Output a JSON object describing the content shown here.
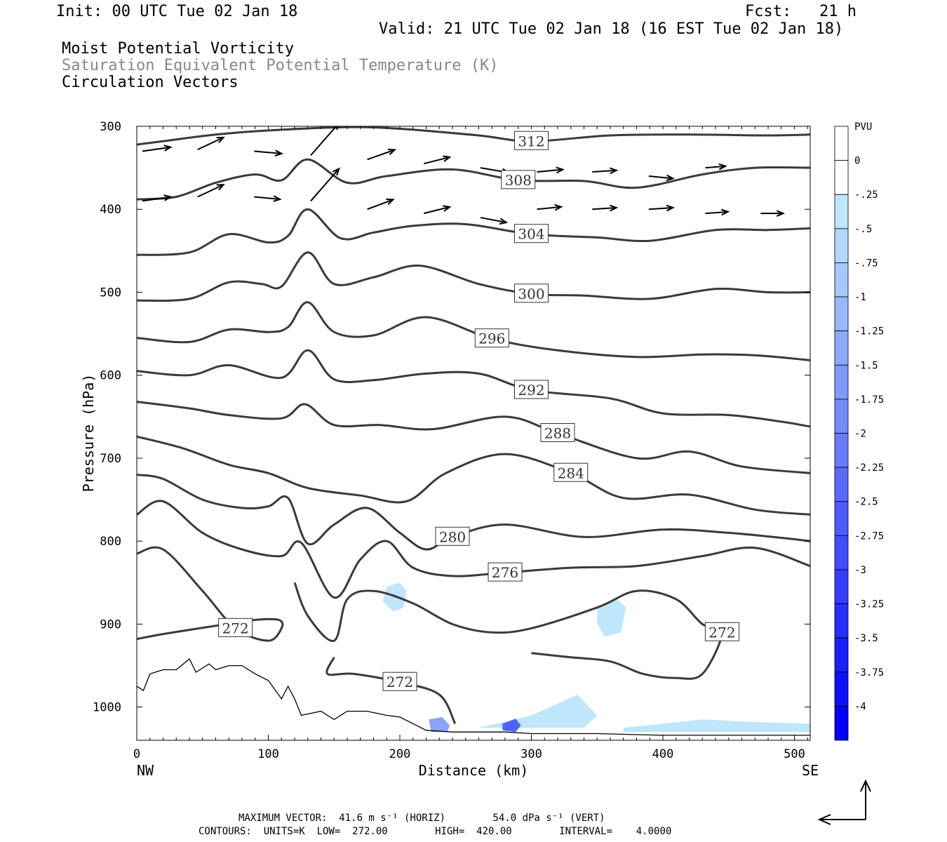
{
  "header": {
    "init": "Init: 00 UTC Tue 02 Jan 18",
    "fcst": "Fcst:   21 h",
    "valid": "Valid: 21 UTC Tue 02 Jan 18 (16 EST Tue 02 Jan 18)",
    "line1": "Moist Potential Vorticity",
    "line2": "Saturation Equivalent Potential Temperature (K)",
    "line3": "Circulation Vectors"
  },
  "footer": {
    "max_vector": "MAXIMUM VECTOR:  41.6 m s⁻¹ (HORIZ)        54.0 dPa s⁻¹ (VERT)",
    "contours": "CONTOURS:  UNITS=K  LOW=  272.00        HIGH=  420.00        INTERVAL=    4.0000"
  },
  "colors": {
    "contour": "#3a3a3a",
    "pv_light": "#bfe6fb",
    "pv_dark": "#0000ff",
    "arrow": "#000000"
  },
  "chart_data": {
    "type": "line",
    "xlabel": "Distance (km)",
    "ylabel": "Pressure (hPa)",
    "xlim": [
      0,
      512
    ],
    "ylim": [
      1040,
      300
    ],
    "x_ticks": [
      "0",
      "100",
      "200",
      "300",
      "400",
      "500"
    ],
    "x_tick_values": [
      0,
      100,
      200,
      300,
      400,
      500
    ],
    "y_ticks": [
      "300",
      "400",
      "500",
      "600",
      "700",
      "800",
      "900",
      "1000"
    ],
    "y_tick_values": [
      300,
      400,
      500,
      600,
      700,
      800,
      900,
      1000
    ],
    "x_end_labels": {
      "left": "NW",
      "right": "SE"
    },
    "colorbar": {
      "title": "PVU",
      "labels": [
        "0",
        "-.25",
        "-.5",
        "-.75",
        "-1",
        "-1.25",
        "-1.5",
        "-1.75",
        "-2",
        "-2.25",
        "-2.5",
        "-2.75",
        "-3",
        "-3.25",
        "-3.5",
        "-3.75",
        "-4"
      ]
    },
    "series": [
      {
        "label": "312",
        "x": [
          0,
          20,
          60,
          100,
          160,
          200,
          260,
          300,
          360,
          420,
          480,
          512
        ],
        "y": [
          322,
          318,
          310,
          305,
          301,
          303,
          311,
          318,
          311,
          310,
          311,
          310
        ]
      },
      {
        "label": "308",
        "x": [
          0,
          30,
          60,
          90,
          110,
          130,
          160,
          190,
          240,
          290,
          340,
          380,
          430,
          470,
          512
        ],
        "y": [
          388,
          385,
          368,
          358,
          365,
          340,
          368,
          360,
          352,
          365,
          366,
          374,
          358,
          350,
          350
        ]
      },
      {
        "label": "304",
        "x": [
          0,
          40,
          70,
          100,
          115,
          130,
          155,
          180,
          210,
          250,
          300,
          350,
          390,
          440,
          480,
          512
        ],
        "y": [
          455,
          452,
          430,
          440,
          432,
          400,
          435,
          428,
          420,
          418,
          430,
          434,
          438,
          425,
          425,
          423
        ]
      },
      {
        "label": "300",
        "x": [
          0,
          40,
          70,
          95,
          110,
          130,
          150,
          180,
          215,
          260,
          300,
          340,
          390,
          440,
          480,
          512
        ],
        "y": [
          510,
          508,
          488,
          490,
          493,
          452,
          490,
          482,
          468,
          490,
          502,
          504,
          508,
          496,
          500,
          500
        ]
      },
      {
        "label": "296",
        "x": [
          0,
          40,
          70,
          100,
          115,
          130,
          150,
          180,
          220,
          270,
          320,
          380,
          430,
          470,
          512
        ],
        "y": [
          555,
          560,
          545,
          548,
          542,
          512,
          548,
          552,
          530,
          556,
          570,
          578,
          575,
          576,
          582
        ]
      },
      {
        "label": "292",
        "x": [
          0,
          40,
          70,
          110,
          130,
          150,
          180,
          220,
          260,
          300,
          360,
          400,
          450,
          490,
          512
        ],
        "y": [
          595,
          600,
          588,
          603,
          570,
          605,
          606,
          598,
          598,
          618,
          628,
          646,
          648,
          656,
          662
        ]
      },
      {
        "label": "288",
        "x": [
          0,
          40,
          70,
          110,
          128,
          150,
          185,
          225,
          280,
          320,
          380,
          420,
          460,
          512
        ],
        "y": [
          632,
          640,
          648,
          652,
          635,
          660,
          660,
          665,
          650,
          670,
          700,
          692,
          710,
          718
        ]
      },
      {
        "label": "284",
        "x": [
          0,
          35,
          70,
          100,
          130,
          170,
          205,
          235,
          280,
          330,
          370,
          420,
          470,
          512
        ],
        "y": [
          674,
          688,
          708,
          718,
          736,
          745,
          752,
          718,
          695,
          718,
          748,
          744,
          762,
          768
        ]
      },
      {
        "label": "280",
        "x": [
          0,
          20,
          50,
          80,
          100,
          115,
          130,
          150,
          175,
          200,
          220,
          240,
          280,
          340,
          400,
          450,
          490,
          512
        ],
        "y": [
          720,
          725,
          750,
          760,
          758,
          748,
          803,
          780,
          760,
          790,
          810,
          795,
          780,
          795,
          786,
          790,
          796,
          800
        ]
      },
      {
        "label": "276",
        "x": [
          0,
          20,
          50,
          80,
          110,
          125,
          150,
          170,
          190,
          210,
          240,
          280,
          330,
          380,
          430,
          470,
          512
        ],
        "y": [
          768,
          752,
          790,
          810,
          818,
          802,
          868,
          822,
          800,
          832,
          842,
          838,
          832,
          830,
          818,
          808,
          830
        ]
      },
      {
        "label": "272",
        "x": [
          0,
          20,
          60,
          90,
          108,
          110,
          100,
          75,
          50,
          20,
          0
        ],
        "y": [
          918,
          912,
          902,
          895,
          895,
          905,
          920,
          905,
          860,
          810,
          815
        ]
      },
      {
        "label": "272",
        "x": [
          120,
          130,
          150,
          160,
          180,
          210,
          240,
          270,
          300,
          350,
          380,
          410,
          430,
          445,
          430,
          410,
          385,
          360,
          330,
          300
        ],
        "y": [
          850,
          890,
          920,
          870,
          860,
          875,
          900,
          910,
          905,
          880,
          860,
          870,
          900,
          910,
          960,
          965,
          960,
          945,
          940,
          935
        ]
      },
      {
        "label": "272",
        "x": [
          150,
          145,
          165,
          200,
          230,
          242
        ],
        "y": [
          940,
          960,
          960,
          970,
          985,
          1020
        ]
      }
    ],
    "terrain": {
      "x": [
        0,
        5,
        10,
        20,
        30,
        40,
        45,
        55,
        60,
        70,
        80,
        90,
        100,
        110,
        115,
        120,
        125,
        140,
        150,
        160,
        175,
        190,
        200,
        210,
        220,
        240,
        260,
        280,
        300,
        350,
        400,
        450,
        512
      ],
      "y": [
        975,
        980,
        960,
        955,
        955,
        942,
        958,
        948,
        955,
        950,
        950,
        960,
        968,
        990,
        975,
        990,
        1010,
        1005,
        1015,
        1005,
        1005,
        1010,
        1012,
        1020,
        1028,
        1030,
        1030,
        1030,
        1032,
        1032,
        1034,
        1034,
        1034
      ]
    },
    "pv_regions": [
      {
        "x": [
          190,
          200,
          205,
          203,
          195,
          187
        ],
        "y": [
          855,
          850,
          860,
          880,
          885,
          872
        ],
        "level": "-.25"
      },
      {
        "x": [
          350,
          365,
          372,
          368,
          356,
          350
        ],
        "y": [
          880,
          870,
          880,
          910,
          915,
          900
        ],
        "level": "-.25"
      },
      {
        "x": [
          260,
          300,
          335,
          350,
          340,
          300,
          270
        ],
        "y": [
          1025,
          1010,
          985,
          1010,
          1025,
          1025,
          1025
        ],
        "level": "-.25"
      },
      {
        "x": [
          370,
          430,
          470,
          512,
          512,
          370
        ],
        "y": [
          1025,
          1015,
          1018,
          1020,
          1030,
          1030
        ],
        "level": "-.25"
      },
      {
        "x": [
          222,
          232,
          238,
          236,
          224
        ],
        "y": [
          1015,
          1012,
          1022,
          1030,
          1030
        ],
        "level": "-1.5"
      },
      {
        "x": [
          278,
          288,
          292,
          288,
          278
        ],
        "y": [
          1020,
          1014,
          1022,
          1030,
          1028
        ],
        "level": "-2.5"
      }
    ],
    "vectors": [
      {
        "x": 0,
        "p": 330,
        "u": 35,
        "w": 5
      },
      {
        "x": 42,
        "p": 328,
        "u": 32,
        "w": 15
      },
      {
        "x": 85,
        "p": 330,
        "u": 34,
        "w": -3
      },
      {
        "x": 128,
        "p": 335,
        "u": 35,
        "w": 40
      },
      {
        "x": 171,
        "p": 340,
        "u": 34,
        "w": 12
      },
      {
        "x": 214,
        "p": 345,
        "u": 32,
        "w": 8
      },
      {
        "x": 257,
        "p": 350,
        "u": 35,
        "w": -6
      },
      {
        "x": 300,
        "p": 355,
        "u": 32,
        "w": 3
      },
      {
        "x": 342,
        "p": 355,
        "u": 30,
        "w": 2
      },
      {
        "x": 385,
        "p": 360,
        "u": 30,
        "w": -3
      },
      {
        "x": 428,
        "p": 350,
        "u": 25,
        "w": 2
      },
      {
        "x": 0,
        "p": 390,
        "u": 35,
        "w": 5
      },
      {
        "x": 42,
        "p": 385,
        "u": 32,
        "w": 15
      },
      {
        "x": 85,
        "p": 385,
        "u": 32,
        "w": -3
      },
      {
        "x": 128,
        "p": 390,
        "u": 35,
        "w": 40
      },
      {
        "x": 171,
        "p": 400,
        "u": 32,
        "w": 12
      },
      {
        "x": 214,
        "p": 405,
        "u": 32,
        "w": 8
      },
      {
        "x": 257,
        "p": 410,
        "u": 32,
        "w": -6
      },
      {
        "x": 300,
        "p": 400,
        "u": 30,
        "w": 3
      },
      {
        "x": 342,
        "p": 400,
        "u": 30,
        "w": 2
      },
      {
        "x": 385,
        "p": 400,
        "u": 30,
        "w": 2
      },
      {
        "x": 428,
        "p": 405,
        "u": 28,
        "w": 2
      },
      {
        "x": 470,
        "p": 405,
        "u": 28,
        "w": 0
      }
    ]
  }
}
